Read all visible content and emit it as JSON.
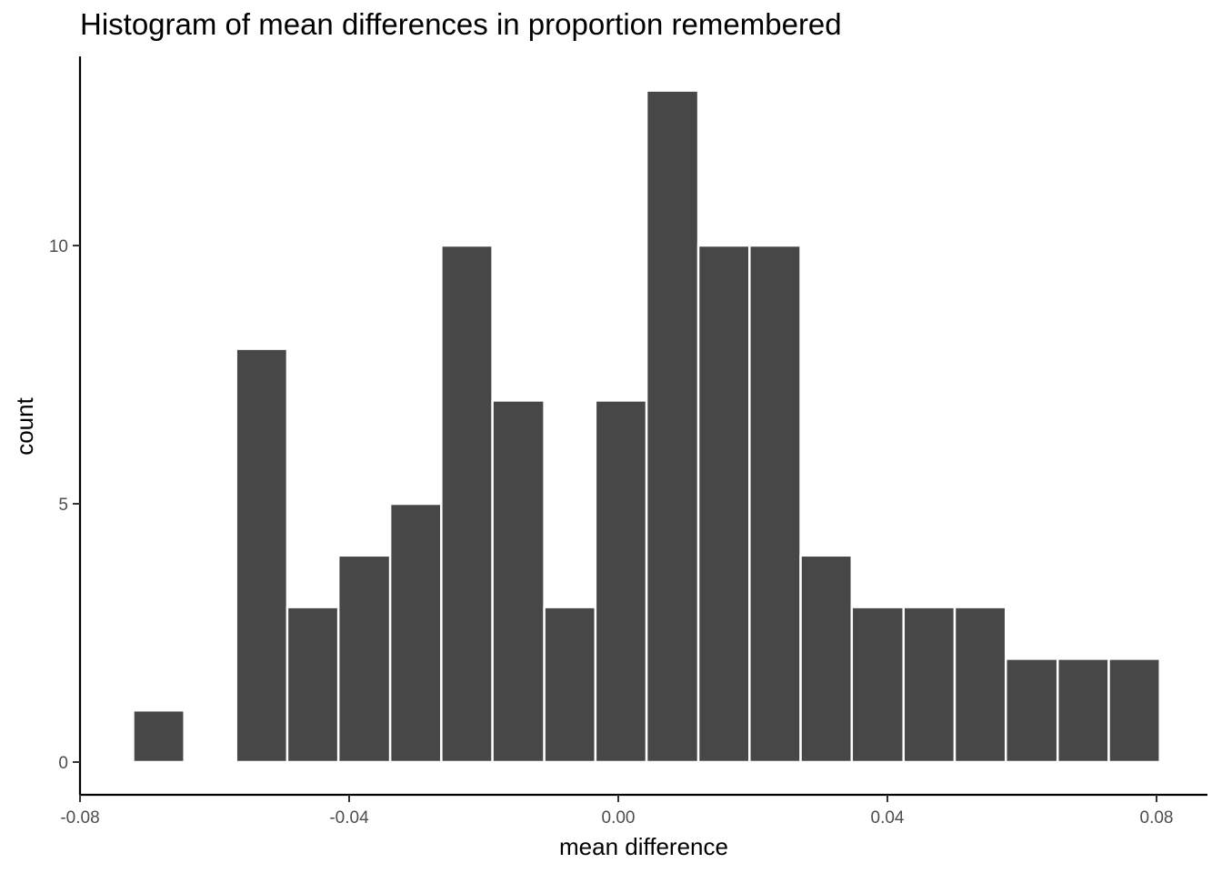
{
  "chart_data": {
    "type": "bar",
    "title": "Histogram of mean differences in proportion remembered",
    "xlabel": "mean difference",
    "ylabel": "count",
    "xlim": [
      -0.08,
      0.08
    ],
    "ylim": [
      0,
      13
    ],
    "x_ticks": [
      -0.08,
      -0.04,
      0.0,
      0.04,
      0.08
    ],
    "x_tick_labels": [
      "-0.08",
      "-0.04",
      "0.00",
      "0.04",
      "0.08"
    ],
    "y_ticks": [
      0,
      5,
      10
    ],
    "y_tick_labels": [
      "0",
      "5",
      "10"
    ],
    "bin_width": 0.00763,
    "bins": [
      {
        "x0": -0.0721,
        "x1": -0.0645,
        "count": 1
      },
      {
        "x0": -0.0568,
        "x1": -0.0492,
        "count": 8
      },
      {
        "x0": -0.0492,
        "x1": -0.0416,
        "count": 3
      },
      {
        "x0": -0.0416,
        "x1": -0.0339,
        "count": 4
      },
      {
        "x0": -0.0339,
        "x1": -0.0263,
        "count": 5
      },
      {
        "x0": -0.0263,
        "x1": -0.0187,
        "count": 10
      },
      {
        "x0": -0.0187,
        "x1": -0.011,
        "count": 7
      },
      {
        "x0": -0.011,
        "x1": -0.0034,
        "count": 3
      },
      {
        "x0": -0.0034,
        "x1": 0.0042,
        "count": 7
      },
      {
        "x0": 0.0042,
        "x1": 0.0119,
        "count": 13
      },
      {
        "x0": 0.0119,
        "x1": 0.0195,
        "count": 10
      },
      {
        "x0": 0.0195,
        "x1": 0.0271,
        "count": 10
      },
      {
        "x0": 0.0271,
        "x1": 0.0347,
        "count": 4
      },
      {
        "x0": 0.0347,
        "x1": 0.0424,
        "count": 3
      },
      {
        "x0": 0.0424,
        "x1": 0.05,
        "count": 3
      },
      {
        "x0": 0.05,
        "x1": 0.0576,
        "count": 3
      },
      {
        "x0": 0.0576,
        "x1": 0.0653,
        "count": 2
      },
      {
        "x0": 0.0653,
        "x1": 0.0729,
        "count": 2
      },
      {
        "x0": 0.0729,
        "x1": 0.0805,
        "count": 2
      }
    ],
    "bar_color": "#474747",
    "bar_outline_color": "#ffffff",
    "grid": false,
    "legend": "none"
  }
}
